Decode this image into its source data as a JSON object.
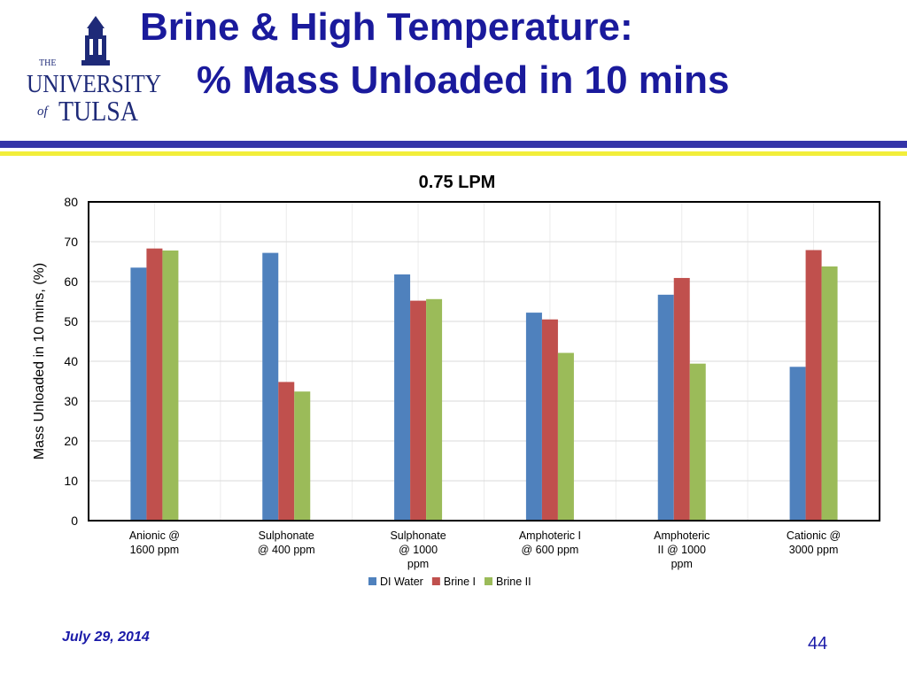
{
  "slide": {
    "title_line1": "Brine & High Temperature:",
    "title_line2": "% Mass Unloaded in 10 mins",
    "footer_date": "July 29, 2014",
    "page_number": "44",
    "logo": {
      "line_the": "THE",
      "line_university": "UNIVERSITY",
      "line_of": "of",
      "line_tulsa": "TULSA",
      "color": "#1e2a78"
    },
    "band_colors": {
      "blue": "#3434a8",
      "yellow": "#f2ee3a"
    }
  },
  "chart_data": {
    "type": "bar",
    "title": "0.75 LPM",
    "xlabel": "",
    "ylabel": "Mass Unloaded in 10 mins, (%)",
    "ylim": [
      0,
      80
    ],
    "yticks": [
      0,
      10,
      20,
      30,
      40,
      50,
      60,
      70,
      80
    ],
    "grid": true,
    "legend_position": "bottom",
    "categories": [
      [
        "Anionic @",
        "1600 ppm"
      ],
      [
        "Sulphonate",
        "@ 400 ppm"
      ],
      [
        "Sulphonate",
        "@ 1000",
        "ppm"
      ],
      [
        "Amphoteric I",
        "@ 600 ppm"
      ],
      [
        "Amphoteric",
        "II @ 1000",
        "ppm"
      ],
      [
        "Cationic @",
        "3000 ppm"
      ]
    ],
    "series": [
      {
        "name": "DI Water",
        "color": "#4f81bd",
        "values": [
          63.5,
          67.2,
          61.8,
          52.2,
          56.7,
          38.6
        ]
      },
      {
        "name": "Brine I",
        "color": "#c0504d",
        "values": [
          68.3,
          34.8,
          55.2,
          50.5,
          60.9,
          67.9
        ]
      },
      {
        "name": "Brine II",
        "color": "#9bbb59",
        "values": [
          67.8,
          32.4,
          55.6,
          42.1,
          39.4,
          63.8
        ]
      }
    ]
  }
}
